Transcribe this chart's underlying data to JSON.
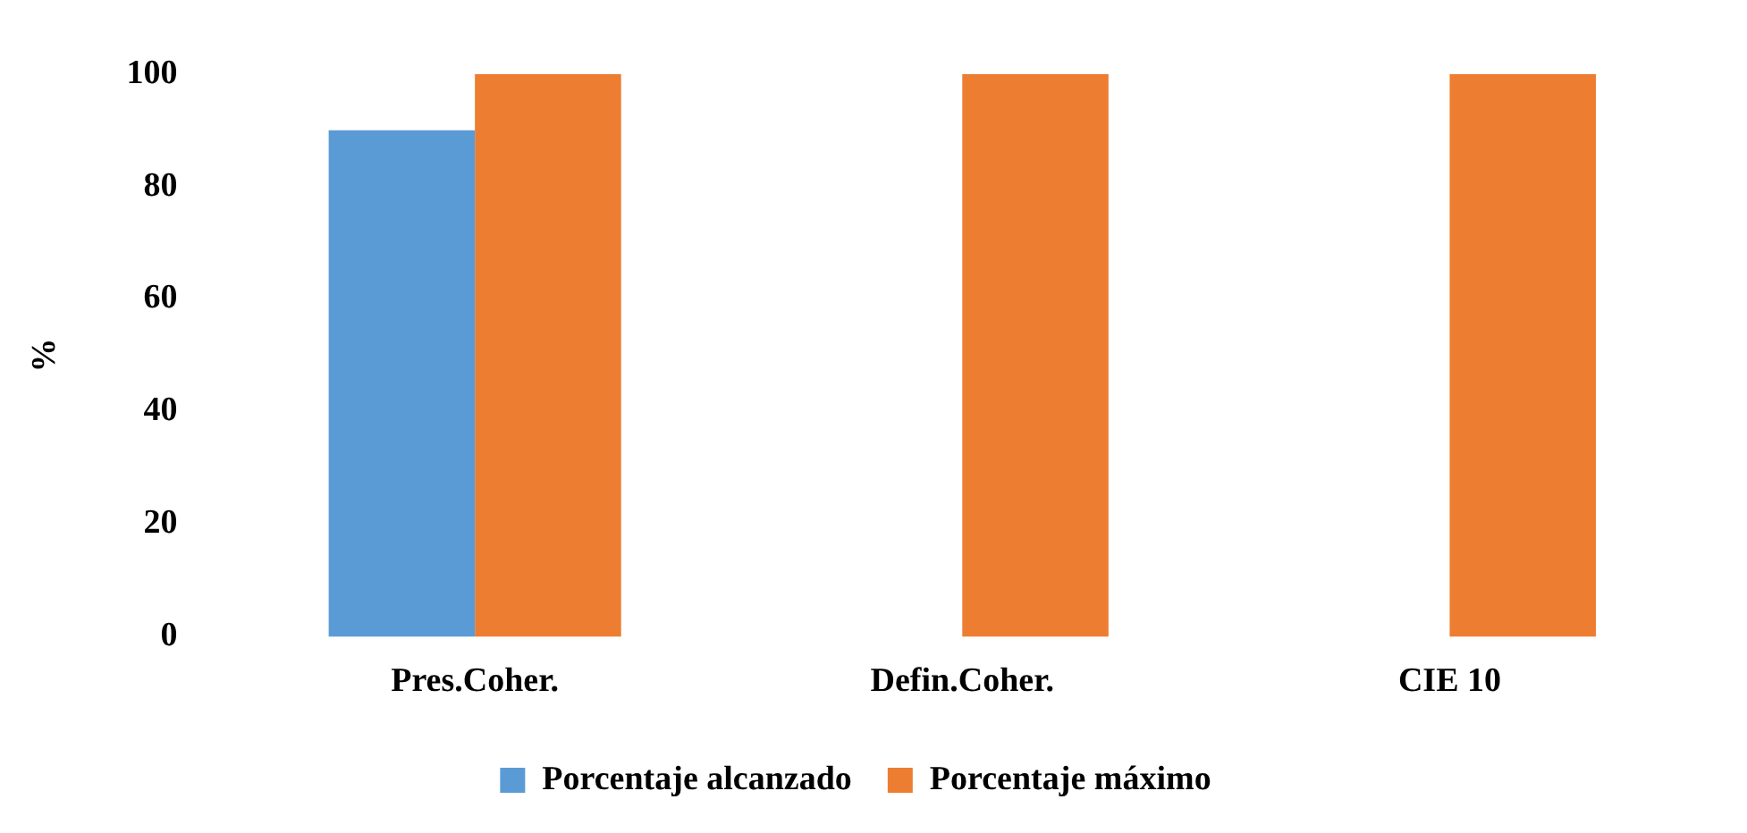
{
  "chart_data": {
    "type": "bar",
    "ylabel": "%",
    "categories": [
      "Pres.Coher.",
      "Defin.Coher.",
      "CIE 10"
    ],
    "series": [
      {
        "name": "Porcentaje alcanzado",
        "color": "#5b9bd5",
        "values": [
          90,
          0,
          0
        ]
      },
      {
        "name": "Porcentaje máximo",
        "color": "#ed7d31",
        "values": [
          100,
          100,
          100
        ]
      }
    ],
    "ylim": [
      0,
      100
    ],
    "yticks": [
      0,
      20,
      40,
      60,
      80,
      100
    ],
    "grid": false,
    "legend": "bottom"
  }
}
